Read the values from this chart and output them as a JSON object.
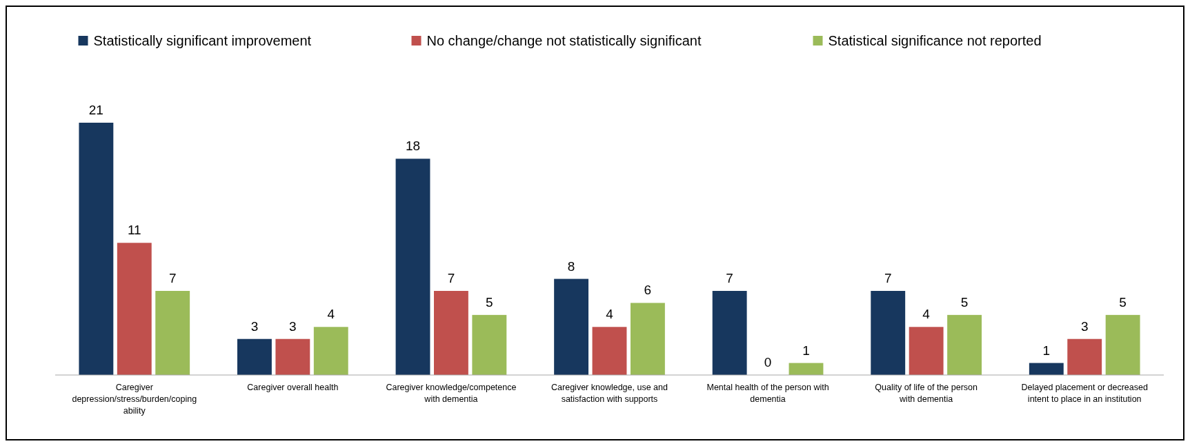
{
  "chart_data": {
    "type": "bar",
    "categories": [
      "Caregiver depression/stress/burden/coping ability",
      "Caregiver overall health",
      "Caregiver knowledge/competence with dementia",
      "Caregiver knowledge, use and satisfaction with supports",
      "Mental health of the person with dementia",
      "Quality of life of the person with dementia",
      "Delayed placement or decreased intent to place in an institution"
    ],
    "series": [
      {
        "name": "Statistically significant improvement",
        "color": "#17375e",
        "values": [
          21,
          3,
          18,
          8,
          7,
          7,
          1
        ]
      },
      {
        "name": "No change/change not statistically significant",
        "color": "#c0504d",
        "values": [
          11,
          3,
          7,
          4,
          0,
          4,
          3
        ]
      },
      {
        "name": "Statistical significance not reported",
        "color": "#9bbb59",
        "values": [
          7,
          4,
          5,
          6,
          1,
          5,
          5
        ]
      }
    ],
    "data_labels": true,
    "legend": "top"
  }
}
